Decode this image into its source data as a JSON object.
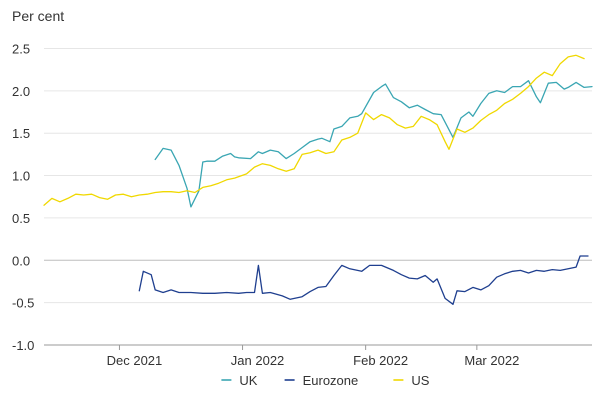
{
  "chart_data": {
    "type": "line",
    "unit_label": "Per cent",
    "ylim": [
      -1.0,
      2.6
    ],
    "yticks": [
      {
        "value": 2.5,
        "label": "2.5"
      },
      {
        "value": 2.0,
        "label": "2.0"
      },
      {
        "value": 1.5,
        "label": "1.5"
      },
      {
        "value": 1.0,
        "label": "1.0"
      },
      {
        "value": 0.5,
        "label": "0.5"
      },
      {
        "value": 0.0,
        "label": "0.0"
      },
      {
        "value": -0.5,
        "label": "-0.5"
      },
      {
        "value": -1.0,
        "label": "-1.0"
      }
    ],
    "xlim": [
      "2021-11-12",
      "2022-03-30"
    ],
    "xticks": [
      {
        "date": "2021-12-01",
        "label": "Dec 2021",
        "label_date": "2021-12-01"
      },
      {
        "date": "2022-01-01",
        "label": "Jan 2022",
        "label_date": "2022-01-01"
      },
      {
        "date": "2022-02-01",
        "label": "Feb 2022",
        "label_date": "2022-02-01"
      },
      {
        "date": "2022-03-01",
        "label": "Mar 2022",
        "label_date": "2022-03-01"
      }
    ],
    "grid": true,
    "legend_position": "bottom-center",
    "series": [
      {
        "name": "UK",
        "color": "#3aa6b3",
        "points": [
          [
            "2021-12-10",
            1.19
          ],
          [
            "2021-12-12",
            1.32
          ],
          [
            "2021-12-14",
            1.3
          ],
          [
            "2021-12-16",
            1.12
          ],
          [
            "2021-12-18",
            0.85
          ],
          [
            "2021-12-19",
            0.63
          ],
          [
            "2021-12-21",
            0.82
          ],
          [
            "2021-12-22",
            1.16
          ],
          [
            "2021-12-23",
            1.17
          ],
          [
            "2021-12-25",
            1.17
          ],
          [
            "2021-12-27",
            1.23
          ],
          [
            "2021-12-29",
            1.26
          ],
          [
            "2021-12-30",
            1.22
          ],
          [
            "2021-12-31",
            1.21
          ],
          [
            "2022-01-03",
            1.2
          ],
          [
            "2022-01-05",
            1.28
          ],
          [
            "2022-01-06",
            1.26
          ],
          [
            "2022-01-08",
            1.3
          ],
          [
            "2022-01-10",
            1.28
          ],
          [
            "2022-01-12",
            1.2
          ],
          [
            "2022-01-14",
            1.26
          ],
          [
            "2022-01-16",
            1.33
          ],
          [
            "2022-01-18",
            1.4
          ],
          [
            "2022-01-20",
            1.43
          ],
          [
            "2022-01-21",
            1.44
          ],
          [
            "2022-01-23",
            1.4
          ],
          [
            "2022-01-24",
            1.55
          ],
          [
            "2022-01-26",
            1.58
          ],
          [
            "2022-01-28",
            1.68
          ],
          [
            "2022-01-30",
            1.7
          ],
          [
            "2022-01-31",
            1.73
          ],
          [
            "2022-02-03",
            1.98
          ],
          [
            "2022-02-05",
            2.05
          ],
          [
            "2022-02-06",
            2.08
          ],
          [
            "2022-02-08",
            1.92
          ],
          [
            "2022-02-10",
            1.87
          ],
          [
            "2022-02-12",
            1.8
          ],
          [
            "2022-02-14",
            1.83
          ],
          [
            "2022-02-16",
            1.78
          ],
          [
            "2022-02-18",
            1.73
          ],
          [
            "2022-02-20",
            1.72
          ],
          [
            "2022-02-23",
            1.45
          ],
          [
            "2022-02-25",
            1.68
          ],
          [
            "2022-02-27",
            1.75
          ],
          [
            "2022-02-28",
            1.7
          ],
          [
            "2022-03-02",
            1.85
          ],
          [
            "2022-03-04",
            1.97
          ],
          [
            "2022-03-06",
            2.0
          ],
          [
            "2022-03-08",
            1.98
          ],
          [
            "2022-03-10",
            2.05
          ],
          [
            "2022-03-12",
            2.05
          ],
          [
            "2022-03-14",
            2.12
          ],
          [
            "2022-03-16",
            1.93
          ],
          [
            "2022-03-17",
            1.86
          ],
          [
            "2022-03-19",
            2.09
          ],
          [
            "2022-03-21",
            2.1
          ],
          [
            "2022-03-23",
            2.02
          ],
          [
            "2022-03-24",
            2.04
          ],
          [
            "2022-03-26",
            2.1
          ],
          [
            "2022-03-28",
            2.04
          ],
          [
            "2022-03-30",
            2.05
          ]
        ]
      },
      {
        "name": "Eurozone",
        "color": "#1f3f8f",
        "points": [
          [
            "2021-12-06",
            -0.36
          ],
          [
            "2021-12-07",
            -0.13
          ],
          [
            "2021-12-09",
            -0.17
          ],
          [
            "2021-12-10",
            -0.35
          ],
          [
            "2021-12-12",
            -0.38
          ],
          [
            "2021-12-14",
            -0.35
          ],
          [
            "2021-12-16",
            -0.38
          ],
          [
            "2021-12-19",
            -0.38
          ],
          [
            "2021-12-22",
            -0.39
          ],
          [
            "2021-12-25",
            -0.39
          ],
          [
            "2021-12-28",
            -0.38
          ],
          [
            "2021-12-31",
            -0.39
          ],
          [
            "2022-01-02",
            -0.38
          ],
          [
            "2022-01-04",
            -0.38
          ],
          [
            "2022-01-05",
            -0.06
          ],
          [
            "2022-01-06",
            -0.39
          ],
          [
            "2022-01-08",
            -0.38
          ],
          [
            "2022-01-11",
            -0.42
          ],
          [
            "2022-01-13",
            -0.46
          ],
          [
            "2022-01-16",
            -0.43
          ],
          [
            "2022-01-18",
            -0.37
          ],
          [
            "2022-01-20",
            -0.32
          ],
          [
            "2022-01-22",
            -0.31
          ],
          [
            "2022-01-24",
            -0.18
          ],
          [
            "2022-01-26",
            -0.06
          ],
          [
            "2022-01-28",
            -0.1
          ],
          [
            "2022-01-31",
            -0.13
          ],
          [
            "2022-02-02",
            -0.06
          ],
          [
            "2022-02-05",
            -0.06
          ],
          [
            "2022-02-08",
            -0.12
          ],
          [
            "2022-02-10",
            -0.17
          ],
          [
            "2022-02-12",
            -0.21
          ],
          [
            "2022-02-14",
            -0.22
          ],
          [
            "2022-02-16",
            -0.18
          ],
          [
            "2022-02-18",
            -0.26
          ],
          [
            "2022-02-19",
            -0.22
          ],
          [
            "2022-02-21",
            -0.45
          ],
          [
            "2022-02-23",
            -0.52
          ],
          [
            "2022-02-24",
            -0.36
          ],
          [
            "2022-02-26",
            -0.37
          ],
          [
            "2022-02-28",
            -0.32
          ],
          [
            "2022-03-02",
            -0.35
          ],
          [
            "2022-03-04",
            -0.3
          ],
          [
            "2022-03-06",
            -0.2
          ],
          [
            "2022-03-08",
            -0.16
          ],
          [
            "2022-03-10",
            -0.13
          ],
          [
            "2022-03-12",
            -0.12
          ],
          [
            "2022-03-14",
            -0.15
          ],
          [
            "2022-03-16",
            -0.12
          ],
          [
            "2022-03-18",
            -0.13
          ],
          [
            "2022-03-20",
            -0.11
          ],
          [
            "2022-03-22",
            -0.12
          ],
          [
            "2022-03-24",
            -0.1
          ],
          [
            "2022-03-26",
            -0.08
          ],
          [
            "2022-03-27",
            0.05
          ],
          [
            "2022-03-29",
            0.05
          ]
        ]
      },
      {
        "name": "US",
        "color": "#f0d800",
        "points": [
          [
            "2021-11-12",
            0.65
          ],
          [
            "2021-11-14",
            0.73
          ],
          [
            "2021-11-16",
            0.69
          ],
          [
            "2021-11-18",
            0.73
          ],
          [
            "2021-11-20",
            0.78
          ],
          [
            "2021-11-22",
            0.77
          ],
          [
            "2021-11-24",
            0.78
          ],
          [
            "2021-11-26",
            0.74
          ],
          [
            "2021-11-28",
            0.72
          ],
          [
            "2021-11-30",
            0.77
          ],
          [
            "2021-12-02",
            0.78
          ],
          [
            "2021-12-04",
            0.75
          ],
          [
            "2021-12-06",
            0.77
          ],
          [
            "2021-12-08",
            0.78
          ],
          [
            "2021-12-10",
            0.8
          ],
          [
            "2021-12-12",
            0.81
          ],
          [
            "2021-12-14",
            0.81
          ],
          [
            "2021-12-16",
            0.8
          ],
          [
            "2021-12-18",
            0.82
          ],
          [
            "2021-12-20",
            0.8
          ],
          [
            "2021-12-22",
            0.86
          ],
          [
            "2021-12-24",
            0.88
          ],
          [
            "2021-12-26",
            0.91
          ],
          [
            "2021-12-28",
            0.95
          ],
          [
            "2021-12-30",
            0.97
          ],
          [
            "2022-01-02",
            1.02
          ],
          [
            "2022-01-04",
            1.1
          ],
          [
            "2022-01-06",
            1.14
          ],
          [
            "2022-01-08",
            1.12
          ],
          [
            "2022-01-10",
            1.08
          ],
          [
            "2022-01-12",
            1.05
          ],
          [
            "2022-01-14",
            1.08
          ],
          [
            "2022-01-16",
            1.25
          ],
          [
            "2022-01-18",
            1.27
          ],
          [
            "2022-01-20",
            1.3
          ],
          [
            "2022-01-22",
            1.26
          ],
          [
            "2022-01-24",
            1.28
          ],
          [
            "2022-01-26",
            1.42
          ],
          [
            "2022-01-28",
            1.45
          ],
          [
            "2022-01-30",
            1.5
          ],
          [
            "2022-02-01",
            1.74
          ],
          [
            "2022-02-03",
            1.66
          ],
          [
            "2022-02-05",
            1.72
          ],
          [
            "2022-02-07",
            1.68
          ],
          [
            "2022-02-09",
            1.6
          ],
          [
            "2022-02-11",
            1.56
          ],
          [
            "2022-02-13",
            1.58
          ],
          [
            "2022-02-15",
            1.7
          ],
          [
            "2022-02-17",
            1.66
          ],
          [
            "2022-02-19",
            1.6
          ],
          [
            "2022-02-21",
            1.4
          ],
          [
            "2022-02-22",
            1.31
          ],
          [
            "2022-02-24",
            1.55
          ],
          [
            "2022-02-26",
            1.51
          ],
          [
            "2022-02-28",
            1.56
          ],
          [
            "2022-03-02",
            1.65
          ],
          [
            "2022-03-04",
            1.72
          ],
          [
            "2022-03-06",
            1.77
          ],
          [
            "2022-03-08",
            1.85
          ],
          [
            "2022-03-10",
            1.9
          ],
          [
            "2022-03-12",
            1.97
          ],
          [
            "2022-03-14",
            2.05
          ],
          [
            "2022-03-16",
            2.15
          ],
          [
            "2022-03-18",
            2.22
          ],
          [
            "2022-03-20",
            2.18
          ],
          [
            "2022-03-22",
            2.32
          ],
          [
            "2022-03-24",
            2.4
          ],
          [
            "2022-03-26",
            2.42
          ],
          [
            "2022-03-28",
            2.38
          ]
        ]
      }
    ]
  }
}
